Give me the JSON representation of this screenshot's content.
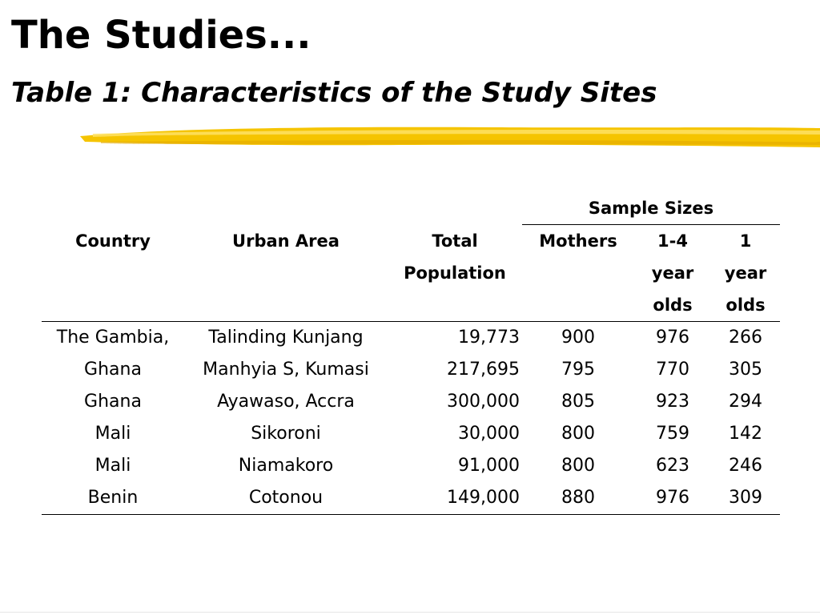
{
  "slide": {
    "title": "The Studies...",
    "subtitle": "Table 1: Characteristics of the Study Sites",
    "accent_color": "#f5c400"
  },
  "table": {
    "group_header": "Sample Sizes",
    "columns": [
      "Country",
      "Urban Area",
      "Total Population",
      "Mothers",
      "1-4 year olds",
      "1 year olds"
    ],
    "column_lines": {
      "total": [
        "Total",
        "Population"
      ],
      "age14": [
        "1-4",
        "year",
        "olds"
      ],
      "age1": [
        "1",
        "year",
        "olds"
      ]
    },
    "rows": [
      {
        "country": "The Gambia,",
        "urban_area": "Talinding Kunjang",
        "population": "19,773",
        "mothers": "900",
        "age_1_4": "976",
        "age_1": "266"
      },
      {
        "country": "Ghana",
        "urban_area": "Manhyia S, Kumasi",
        "population": "217,695",
        "mothers": "795",
        "age_1_4": "770",
        "age_1": "305"
      },
      {
        "country": "Ghana",
        "urban_area": "Ayawaso, Accra",
        "population": "300,000",
        "mothers": "805",
        "age_1_4": "923",
        "age_1": "294"
      },
      {
        "country": "Mali",
        "urban_area": "Sikoroni",
        "population": "30,000",
        "mothers": "800",
        "age_1_4": "759",
        "age_1": "142"
      },
      {
        "country": "Mali",
        "urban_area": "Niamakoro",
        "population": "91,000",
        "mothers": "800",
        "age_1_4": "623",
        "age_1": "246"
      },
      {
        "country": "Benin",
        "urban_area": "Cotonou",
        "population": "149,000",
        "mothers": "880",
        "age_1_4": "976",
        "age_1": "309"
      }
    ]
  }
}
